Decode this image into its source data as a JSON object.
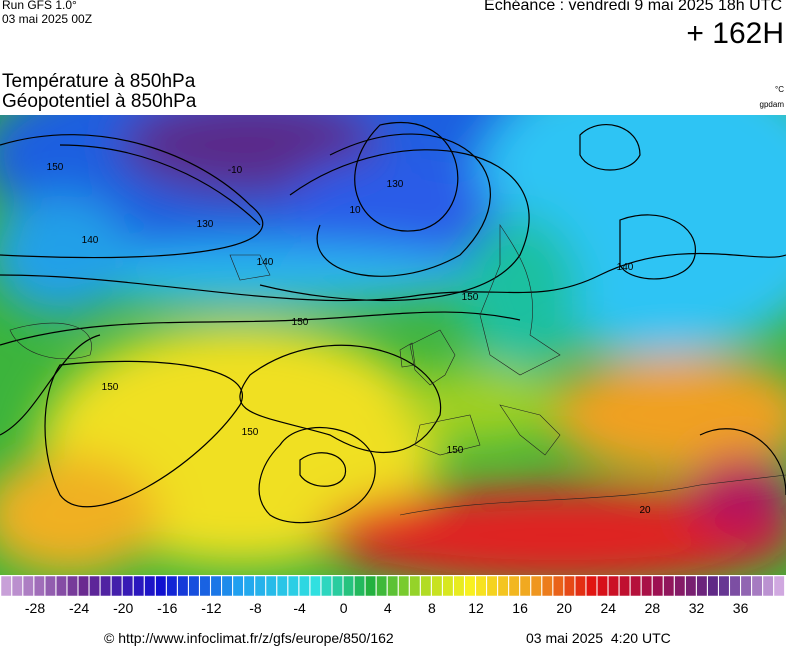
{
  "header": {
    "run": "Run GFS 1.0°",
    "run_date": "03 mai 2025 00Z",
    "forecast": "Echéance : vendredi 9 mai 2025 18h UTC",
    "lead": "+ 162H",
    "title_1": "Température à 850hPa",
    "title_2": "Géopotentiel à 850hPa",
    "unit_1": "°C",
    "unit_2": "gpdam"
  },
  "map": {
    "contour_labels": [
      "150",
      "140",
      "130",
      "140",
      "150",
      "150",
      "150",
      "150",
      "150",
      "140",
      "130",
      "-10",
      "10",
      "20"
    ]
  },
  "scale": {
    "ticks": [
      -28,
      -24,
      -20,
      -16,
      -12,
      -8,
      -4,
      0,
      4,
      8,
      12,
      16,
      20,
      24,
      28,
      32,
      36
    ]
  },
  "footer": {
    "source": "© http://www.infoclimat.fr/z/gfs/europe/850/162",
    "issued": "03 mai 2025  4:20 UTC"
  }
}
